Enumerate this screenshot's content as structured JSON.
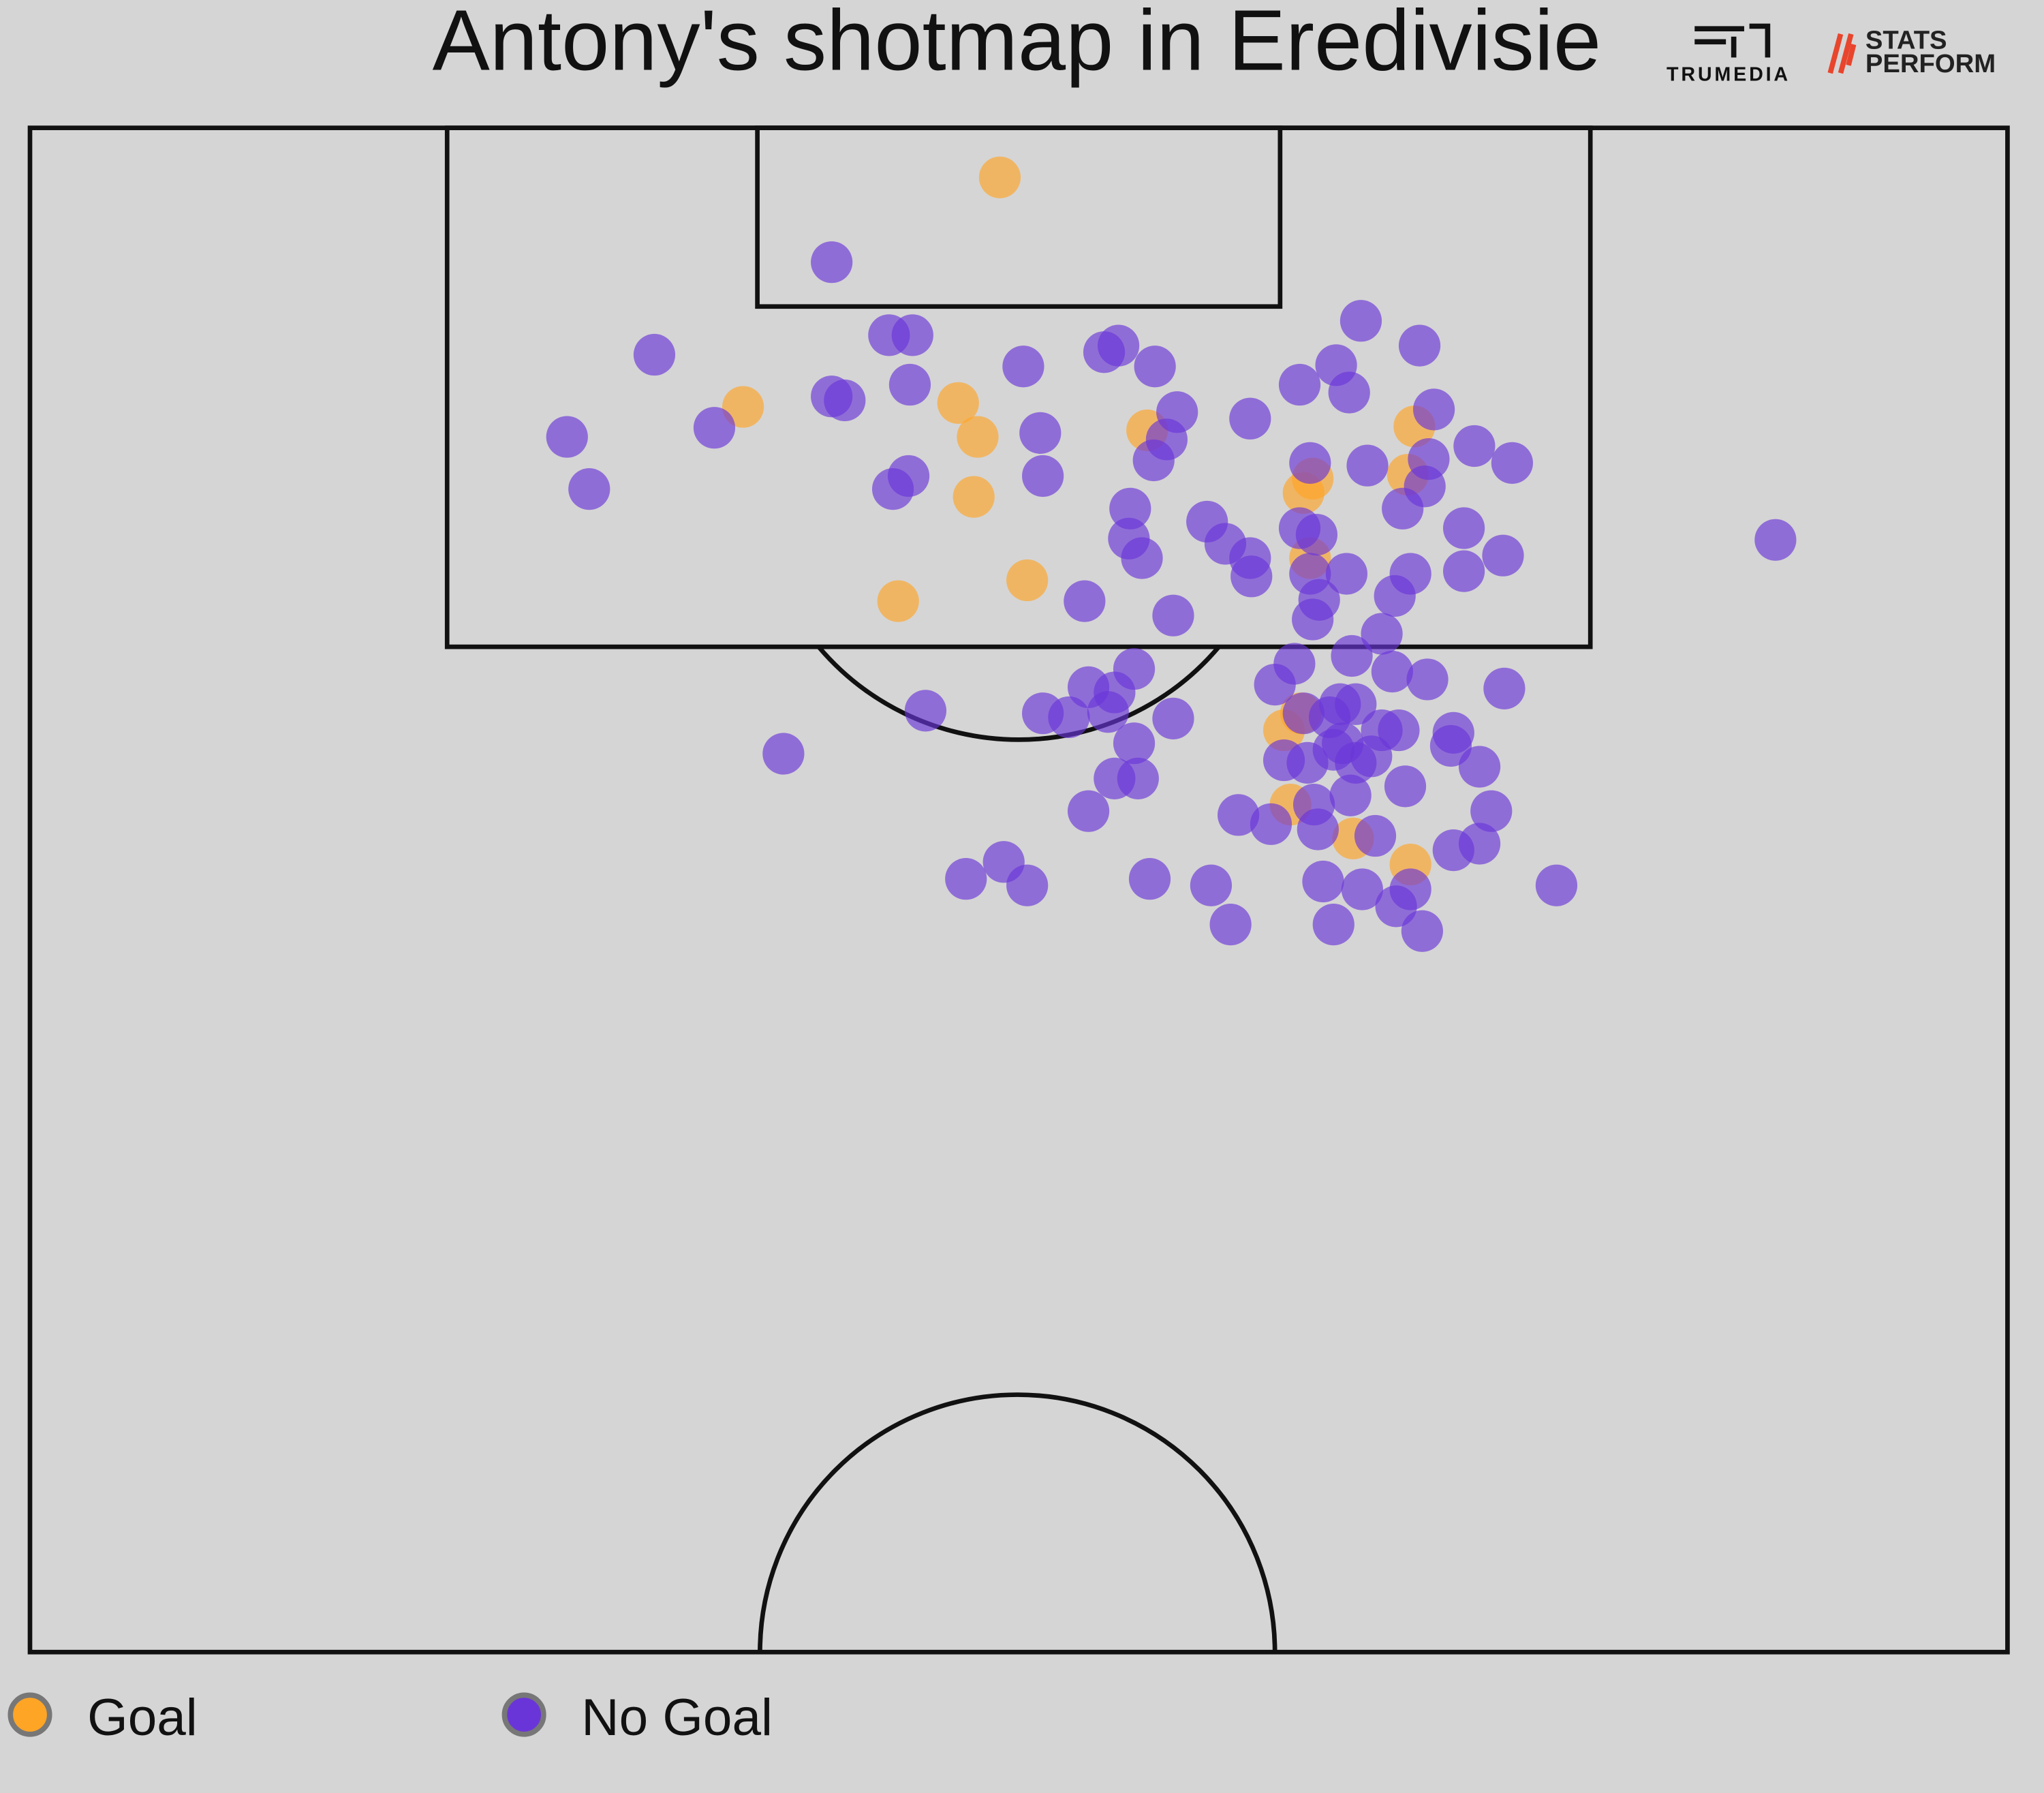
{
  "chart_data": {
    "type": "scatter",
    "title": "Antony's shotmap in Eredivisie",
    "logos": [
      "TRUMEDIA",
      "STATS",
      "PERFORM"
    ],
    "xlim": [
      23,
      1540
    ],
    "ylim": [
      1267,
      98
    ],
    "series": [
      {
        "name": "Goal",
        "color": "#ffa526",
        "x": [
          767,
          570,
          735,
          750,
          747,
          689,
          788,
          880,
          1085,
          1080,
          1000,
          1007,
          1005,
          985,
          998,
          990,
          1038,
          1082
        ],
        "y": [
          136,
          312,
          309,
          335,
          381,
          461,
          445,
          330,
          327,
          364,
          378,
          367,
          428,
          560,
          547,
          617,
          643,
          663
        ]
      },
      {
        "name": "No Goal",
        "color": "#6a35d8",
        "x": [
          638,
          502,
          435,
          452,
          548,
          638,
          648,
          682,
          700,
          698,
          785,
          798,
          800,
          685,
          697,
          847,
          858,
          886,
          903,
          895,
          885,
          959,
          997,
          1025,
          1035,
          1044,
          1089,
          1100,
          1096,
          1131,
          1160,
          1049,
          1005,
          1093,
          1076,
          1123,
          1153,
          1123,
          1082,
          1070,
          1033,
          1060,
          1010,
          997,
          1005,
          1012,
          1007,
          926,
          940,
          959,
          960,
          867,
          866,
          876,
          900,
          832,
          1362,
          870,
          835,
          855,
          850,
          820,
          800,
          900,
          870,
          855,
          873,
          835,
          710,
          601,
          978,
          993,
          1037,
          1068,
          1095,
          1154,
          1000,
          1020,
          1028,
          1040,
          1060,
          1073,
          1115,
          1113,
          1135,
          985,
          1003,
          1040,
          1052,
          1078,
          1036,
          1008,
          1144,
          1135,
          1115,
          950,
          975,
          1011,
          1055,
          741,
          770,
          788,
          882,
          929,
          944,
          1015,
          1045,
          1082,
          1071,
          1023,
          1091,
          1194,
          1023,
          1030
        ],
        "y": [
          201,
          272,
          335,
          375,
          328,
          304,
          307,
          257,
          257,
          295,
          281,
          332,
          365,
          375,
          365,
          270,
          265,
          281,
          316,
          337,
          353,
          321,
          295,
          280,
          301,
          246,
          265,
          314,
          352,
          342,
          355,
          357,
          355,
          373,
          390,
          405,
          426,
          438,
          440,
          457,
          440,
          486,
          410,
          405,
          440,
          460,
          475,
          400,
          417,
          428,
          442,
          390,
          413,
          428,
          472,
          461,
          414,
          513,
          527,
          531,
          546,
          550,
          547,
          551,
          570,
          597,
          597,
          622,
          545,
          578,
          525,
          509,
          503,
          515,
          521,
          528,
          547,
          550,
          540,
          540,
          560,
          560,
          562,
          572,
          588,
          583,
          585,
          585,
          580,
          603,
          610,
          617,
          622,
          647,
          652,
          625,
          632,
          636,
          641,
          674,
          661,
          679,
          674,
          679,
          709,
          676,
          682,
          682,
          695,
          709,
          714,
          679,
          575,
          570
        ]
      }
    ]
  }
}
